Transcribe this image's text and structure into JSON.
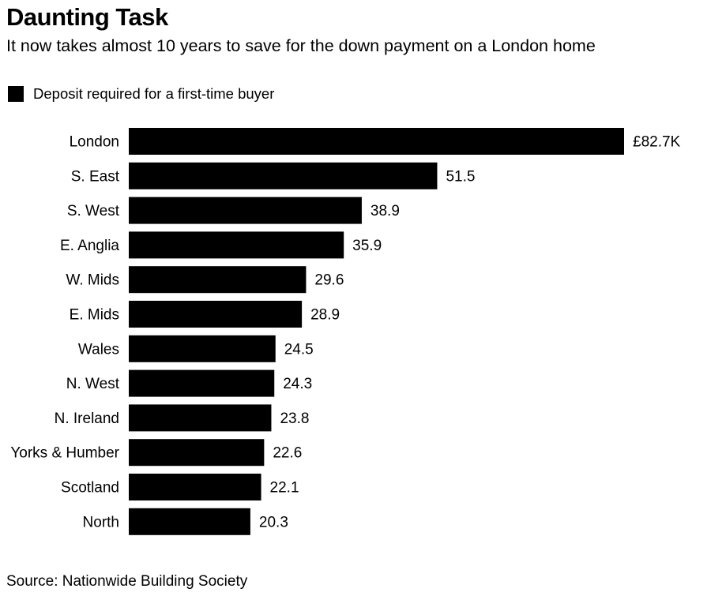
{
  "chart_data": {
    "type": "bar",
    "orientation": "horizontal",
    "title": "Daunting Task",
    "subtitle": "It now takes almost 10 years to save for the down payment on a London home",
    "legend": {
      "entries": [
        "Deposit required for a first-time buyer"
      ],
      "placement": "top-left"
    },
    "categories": [
      "London",
      "S. East",
      "S. West",
      "E. Anglia",
      "W. Mids",
      "E. Mids",
      "Wales",
      "N. West",
      "N. Ireland",
      "Yorks & Humber",
      "Scotland",
      "North"
    ],
    "series": [
      {
        "name": "Deposit required for a first-time buyer",
        "values": [
          82.7,
          51.5,
          38.9,
          35.9,
          29.6,
          28.9,
          24.5,
          24.3,
          23.8,
          22.6,
          22.1,
          20.3
        ]
      }
    ],
    "data_labels": [
      "£82.7K",
      "51.5",
      "38.9",
      "35.9",
      "29.6",
      "28.9",
      "24.5",
      "24.3",
      "23.8",
      "22.6",
      "22.1",
      "20.3"
    ],
    "xlim": [
      0,
      82.7
    ],
    "grid": false,
    "colors": {
      "bar": "#000000"
    },
    "source": "Source: Nationwide Building Society"
  }
}
